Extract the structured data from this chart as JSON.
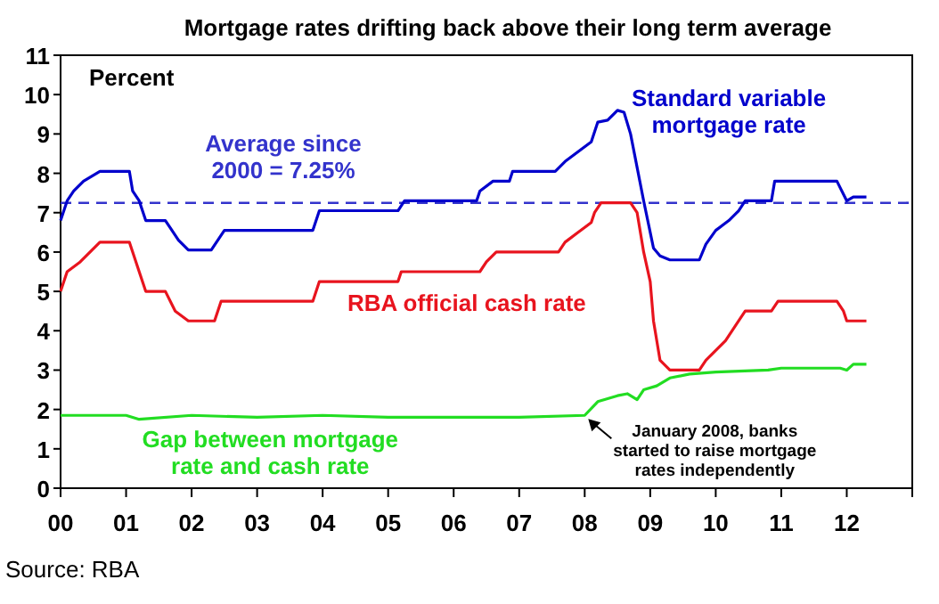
{
  "chart_data": {
    "type": "line",
    "title": "Mortgage rates drifting back above their long term average",
    "ylabel": "Percent",
    "xlim": [
      2000,
      2013
    ],
    "xticks": [
      {
        "value": 2000,
        "label": "00"
      },
      {
        "value": 2001,
        "label": "01"
      },
      {
        "value": 2002,
        "label": "02"
      },
      {
        "value": 2003,
        "label": "03"
      },
      {
        "value": 2004,
        "label": "04"
      },
      {
        "value": 2005,
        "label": "05"
      },
      {
        "value": 2006,
        "label": "06"
      },
      {
        "value": 2007,
        "label": "07"
      },
      {
        "value": 2008,
        "label": "08"
      },
      {
        "value": 2009,
        "label": "09"
      },
      {
        "value": 2010,
        "label": "10"
      },
      {
        "value": 2011,
        "label": "11"
      },
      {
        "value": 2012,
        "label": "12"
      },
      {
        "value": 2013,
        "label": null
      }
    ],
    "ylim": [
      0,
      11
    ],
    "yticks": [
      0,
      1,
      2,
      3,
      4,
      5,
      6,
      7,
      8,
      9,
      10,
      11
    ],
    "grid": false,
    "series": [
      {
        "name": "Standard variable mortgage rate",
        "color": "#0000cc",
        "x": [
          2000,
          2000.1,
          2000.2,
          2000.35,
          2000.6,
          2001.05,
          2001.1,
          2001.2,
          2001.3,
          2001.6,
          2001.8,
          2001.95,
          2002.3,
          2002.4,
          2002.5,
          2003.85,
          2003.95,
          2005.15,
          2005.25,
          2006.35,
          2006.4,
          2006.6,
          2006.85,
          2006.9,
          2007.55,
          2007.7,
          2007.9,
          2008.1,
          2008.2,
          2008.35,
          2008.5,
          2008.6,
          2008.7,
          2008.9,
          2009.05,
          2009.15,
          2009.3,
          2009.75,
          2009.85,
          2010.0,
          2010.2,
          2010.35,
          2010.45,
          2010.85,
          2010.9,
          2011.85,
          2012.0,
          2012.1,
          2012.3
        ],
        "values": [
          6.8,
          7.3,
          7.55,
          7.8,
          8.05,
          8.05,
          7.55,
          7.3,
          6.8,
          6.8,
          6.3,
          6.05,
          6.05,
          6.3,
          6.55,
          6.55,
          7.05,
          7.05,
          7.3,
          7.3,
          7.55,
          7.8,
          7.8,
          8.05,
          8.05,
          8.3,
          8.55,
          8.8,
          9.3,
          9.35,
          9.6,
          9.55,
          9.0,
          7.3,
          6.1,
          5.9,
          5.8,
          5.8,
          6.2,
          6.55,
          6.8,
          7.05,
          7.3,
          7.3,
          7.8,
          7.8,
          7.3,
          7.4,
          7.4
        ]
      },
      {
        "name": "RBA official cash rate",
        "color": "#e8141e",
        "x": [
          2000,
          2000.1,
          2000.3,
          2000.45,
          2000.6,
          2001.05,
          2001.2,
          2001.3,
          2001.6,
          2001.75,
          2001.95,
          2002.35,
          2002.45,
          2003.85,
          2003.95,
          2005.15,
          2005.2,
          2006.4,
          2006.5,
          2006.65,
          2007.6,
          2007.7,
          2007.9,
          2008.1,
          2008.15,
          2008.25,
          2008.7,
          2008.8,
          2008.9,
          2009.0,
          2009.05,
          2009.15,
          2009.3,
          2009.75,
          2009.85,
          2010.0,
          2010.15,
          2010.35,
          2010.45,
          2010.85,
          2010.95,
          2011.85,
          2011.95,
          2012.0,
          2012.3
        ],
        "values": [
          5.0,
          5.5,
          5.75,
          6.0,
          6.25,
          6.25,
          5.5,
          5.0,
          5.0,
          4.5,
          4.25,
          4.25,
          4.75,
          4.75,
          5.25,
          5.25,
          5.5,
          5.5,
          5.75,
          6.0,
          6.0,
          6.25,
          6.5,
          6.75,
          7.0,
          7.25,
          7.25,
          7.0,
          6.0,
          5.25,
          4.25,
          3.25,
          3.0,
          3.0,
          3.25,
          3.5,
          3.75,
          4.25,
          4.5,
          4.5,
          4.75,
          4.75,
          4.5,
          4.25,
          4.25
        ]
      },
      {
        "name": "Gap between mortgage rate and cash rate",
        "color": "#22dd22",
        "x": [
          2000,
          2001,
          2001.2,
          2002,
          2003,
          2004,
          2005,
          2006,
          2007,
          2008.0,
          2008.2,
          2008.5,
          2008.65,
          2008.8,
          2008.9,
          2009.1,
          2009.3,
          2009.6,
          2010.0,
          2010.8,
          2011.0,
          2011.9,
          2012.0,
          2012.1,
          2012.3
        ],
        "values": [
          1.85,
          1.85,
          1.75,
          1.85,
          1.8,
          1.85,
          1.8,
          1.8,
          1.8,
          1.85,
          2.2,
          2.35,
          2.4,
          2.25,
          2.5,
          2.6,
          2.8,
          2.9,
          2.95,
          3.0,
          3.05,
          3.05,
          3.0,
          3.15,
          3.15
        ]
      }
    ],
    "ref_lines": [
      {
        "axis": "y",
        "value": 7.25,
        "label": "Average since 2000 = 7.25%",
        "color": "#3333cc",
        "line_style": "dashed"
      }
    ],
    "annotations": [
      {
        "text": "January 2008, banks started to raise mortgage rates independently",
        "x": 2008,
        "y": 1.85
      },
      "Source: RBA"
    ]
  }
}
